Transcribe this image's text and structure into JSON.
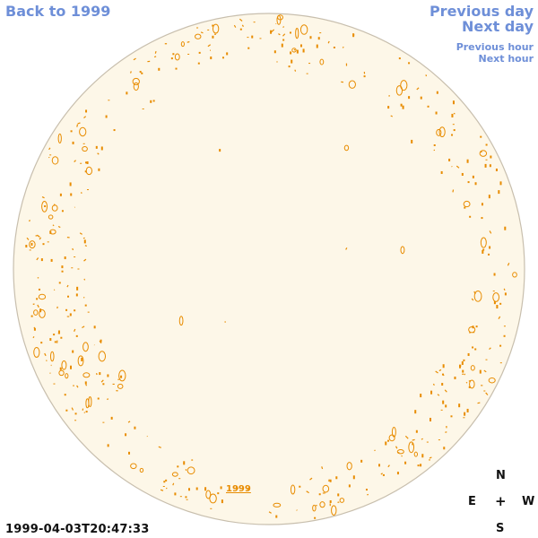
{
  "nav": {
    "back_label": "Back to 1999",
    "previous_day_label": "Previous day",
    "next_day_label": "Next day",
    "previous_hour_label": "Previous hour",
    "next_hour_label": "Next hour"
  },
  "disk": {
    "year_label": "1999",
    "colors": {
      "fill": "#fdf7e8",
      "edge": "#c8bfae",
      "markers": "#e88c00"
    }
  },
  "compass": {
    "north": "N",
    "east": "E",
    "west": "W",
    "south": "S",
    "center": "+"
  },
  "timestamp": "1999-04-03T20:47:33"
}
